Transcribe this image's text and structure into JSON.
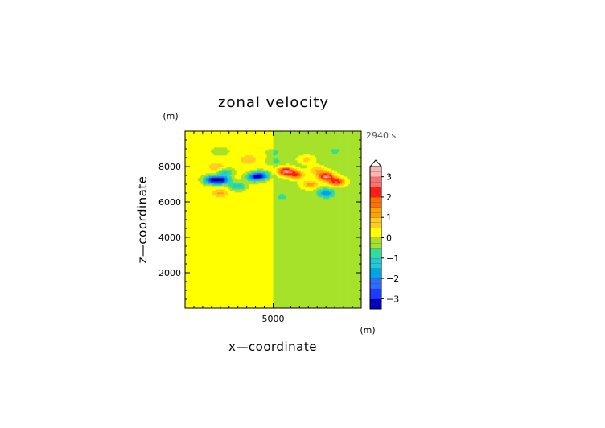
{
  "chart_data": {
    "type": "heatmap",
    "title": "zonal velocity",
    "xlabel": "x—coordinate",
    "ylabel": "z—coordinate",
    "x_unit": "(m)",
    "y_unit": "(m)",
    "time_label": "2940 s",
    "xlim": [
      0,
      10000
    ],
    "ylim": [
      0,
      10000
    ],
    "xticks": [
      5000
    ],
    "yticks": [
      2000,
      4000,
      6000,
      8000
    ],
    "colorbar": {
      "range": [
        -3.5,
        3.5
      ],
      "ticks": [
        3,
        2,
        1,
        0,
        -1,
        -2,
        -3
      ],
      "tick_labels": [
        "3",
        "2",
        "1",
        "0",
        "−1",
        "−2",
        "−3"
      ],
      "extend_top": true
    },
    "background_left_value": 0.2,
    "background_right_value": -0.15,
    "features": [
      {
        "x": 1500,
        "z": 7250,
        "u": -3.0
      },
      {
        "x": 2100,
        "z": 7250,
        "u": -3.1
      },
      {
        "x": 1800,
        "z": 8000,
        "u": 0.8
      },
      {
        "x": 3000,
        "z": 6900,
        "u": -1.6
      },
      {
        "x": 2000,
        "z": 6500,
        "u": 0.9
      },
      {
        "x": 4300,
        "z": 7500,
        "u": -2.7
      },
      {
        "x": 3900,
        "z": 7400,
        "u": -2.2
      },
      {
        "x": 5700,
        "z": 7750,
        "u": 3.1
      },
      {
        "x": 6300,
        "z": 7550,
        "u": 2.2
      },
      {
        "x": 8000,
        "z": 7450,
        "u": 3.2
      },
      {
        "x": 8600,
        "z": 7150,
        "u": 2.6
      },
      {
        "x": 7100,
        "z": 7000,
        "u": 1.5
      },
      {
        "x": 8000,
        "z": 6500,
        "u": -1.8
      },
      {
        "x": 5500,
        "z": 6300,
        "u": -0.5
      },
      {
        "x": 3600,
        "z": 8400,
        "u": 0.8
      },
      {
        "x": 6900,
        "z": 8400,
        "u": 0.8
      },
      {
        "x": 2000,
        "z": 8850,
        "u": -0.7
      },
      {
        "x": 5000,
        "z": 8800,
        "u": -0.5
      },
      {
        "x": 8500,
        "z": 8900,
        "u": -0.5
      },
      {
        "x": 2300,
        "z": 7700,
        "u": -1.3
      },
      {
        "x": 7500,
        "z": 7800,
        "u": 1.2
      },
      {
        "x": 5000,
        "z": 8300,
        "u": -0.6
      }
    ]
  }
}
